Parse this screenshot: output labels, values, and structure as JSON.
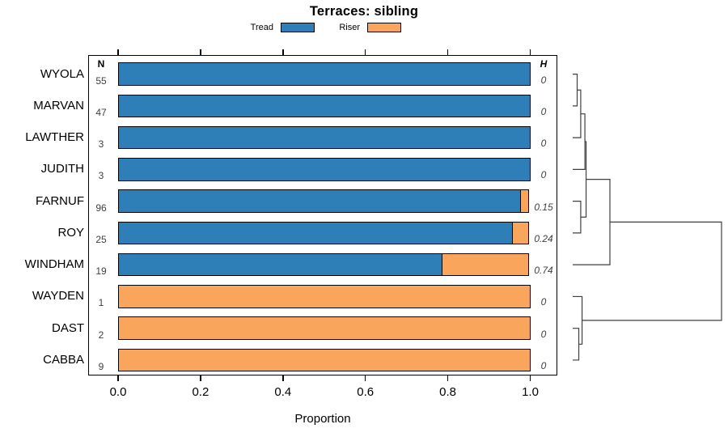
{
  "title": "Terraces: sibling",
  "legend": [
    {
      "label": "Tread",
      "color": "#2E7EB8"
    },
    {
      "label": "Riser",
      "color": "#F9A55C"
    }
  ],
  "columns": {
    "n_header": "N",
    "h_header": "H"
  },
  "axis": {
    "label": "Proportion",
    "ticks": [
      "0.0",
      "0.2",
      "0.4",
      "0.6",
      "0.8",
      "1.0"
    ]
  },
  "chart_data": {
    "type": "bar",
    "stacked": true,
    "orientation": "horizontal",
    "title": "Terraces: sibling",
    "xlabel": "Proportion",
    "xlim": [
      0,
      1
    ],
    "categories": [
      "WYOLA",
      "MARVAN",
      "LAWTHER",
      "JUDITH",
      "FARNUF",
      "ROY",
      "WINDHAM",
      "WAYDEN",
      "DAST",
      "CABBA"
    ],
    "N": [
      "55",
      "47",
      "3",
      "3",
      "96",
      "25",
      "19",
      "1",
      "2",
      "9"
    ],
    "H": [
      "0",
      "0",
      "0",
      "0",
      "0.15",
      "0.24",
      "0.74",
      "0",
      "0",
      "0"
    ],
    "series": [
      {
        "name": "Tread",
        "values": [
          1,
          1,
          1,
          1,
          0.978,
          0.958,
          0.788,
          0,
          0,
          0
        ]
      },
      {
        "name": "Riser",
        "values": [
          0,
          0,
          0,
          0,
          0.022,
          0.042,
          0.212,
          1,
          1,
          1
        ]
      }
    ]
  },
  "dendrogram": {
    "leaves": [
      "WYOLA",
      "MARVAN",
      "LAWTHER",
      "JUDITH",
      "FARNUF",
      "ROY",
      "WINDHAM",
      "WAYDEN",
      "DAST",
      "CABBA"
    ],
    "merges": [
      {
        "id": "m1",
        "children": [
          "WYOLA",
          "MARVAN"
        ],
        "height": 0.03
      },
      {
        "id": "m2",
        "children": [
          "m1",
          "LAWTHER"
        ],
        "height": 0.054
      },
      {
        "id": "m3",
        "children": [
          "m2",
          "JUDITH"
        ],
        "height": 0.082
      },
      {
        "id": "m4",
        "children": [
          "FARNUF",
          "ROY"
        ],
        "height": 0.054
      },
      {
        "id": "m5",
        "children": [
          "m3",
          "m4"
        ],
        "height": 0.09
      },
      {
        "id": "m6",
        "children": [
          "m5",
          "WINDHAM"
        ],
        "height": 0.25
      },
      {
        "id": "m7",
        "children": [
          "DAST",
          "CABBA"
        ],
        "height": 0.041
      },
      {
        "id": "m8",
        "children": [
          "WAYDEN",
          "m7"
        ],
        "height": 0.063
      },
      {
        "id": "m9",
        "children": [
          "m6",
          "m8"
        ],
        "height": 1.0
      }
    ]
  }
}
